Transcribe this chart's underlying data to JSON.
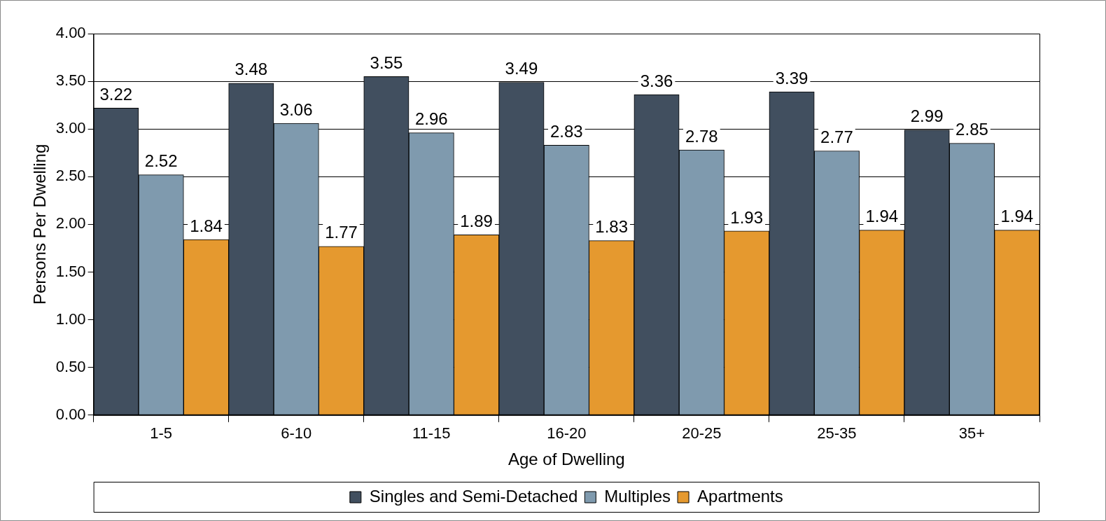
{
  "chart_data": {
    "type": "bar",
    "xlabel": "Age of Dwelling",
    "ylabel": "Persons Per Dwelling",
    "categories": [
      "1-5",
      "6-10",
      "11-15",
      "16-20",
      "20-25",
      "25-35",
      "35+"
    ],
    "series": [
      {
        "name": "Singles and Semi-Detached",
        "color": "#414f5f",
        "values": [
          3.22,
          3.48,
          3.55,
          3.49,
          3.36,
          3.39,
          2.99
        ]
      },
      {
        "name": "Multiples",
        "color": "#7f9aae",
        "values": [
          2.52,
          3.06,
          2.96,
          2.83,
          2.78,
          2.77,
          2.85
        ]
      },
      {
        "name": "Apartments",
        "color": "#e5992f",
        "values": [
          1.84,
          1.77,
          1.89,
          1.83,
          1.93,
          1.94,
          1.94
        ]
      }
    ],
    "ylim": [
      0,
      4
    ],
    "yticks": [
      {
        "value": 0,
        "label": "0.00"
      },
      {
        "value": 0.5,
        "label": "0.50"
      },
      {
        "value": 1,
        "label": "1.00"
      },
      {
        "value": 1.5,
        "label": "1.50"
      },
      {
        "value": 2,
        "label": "2.00"
      },
      {
        "value": 2.5,
        "label": "2.50"
      },
      {
        "value": 3,
        "label": "3.00"
      },
      {
        "value": 3.5,
        "label": "3.50"
      },
      {
        "value": 4,
        "label": "4.00"
      }
    ],
    "grid": "y",
    "legend": "bottom",
    "data_labels": true
  }
}
